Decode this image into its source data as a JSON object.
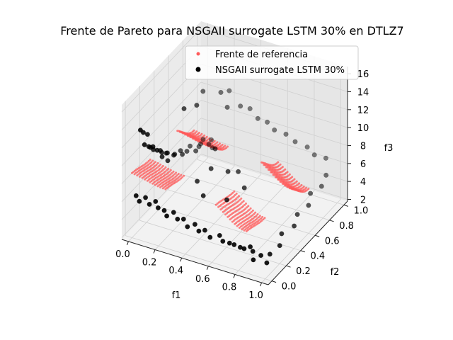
{
  "chart_data": {
    "type": "scatter",
    "projection": "3d",
    "title": "Frente de Pareto para NSGAII surrogate LSTM 30% en DTLZ7",
    "xlabel": "f1",
    "ylabel": "f2",
    "zlabel": "f3",
    "xlim": [
      -0.05,
      1.05
    ],
    "ylim": [
      -0.05,
      1.05
    ],
    "zlim": [
      1.8,
      16.8
    ],
    "x_ticks": [
      0.0,
      0.2,
      0.4,
      0.6,
      0.8,
      1.0
    ],
    "x_tick_labels": [
      "0.0",
      "0.2",
      "0.4",
      "0.6",
      "0.8",
      "1.0"
    ],
    "y_ticks": [
      0.0,
      0.2,
      0.4,
      0.6,
      0.8,
      1.0
    ],
    "y_tick_labels": [
      "0.0",
      "0.2",
      "0.4",
      "0.6",
      "0.8",
      "1.0"
    ],
    "z_ticks": [
      2,
      4,
      6,
      8,
      10,
      12,
      14,
      16
    ],
    "z_tick_labels": [
      "2",
      "4",
      "6",
      "8",
      "10",
      "12",
      "14",
      "16"
    ],
    "grid": true,
    "legend_position": "top-right",
    "series": [
      {
        "name": "Frente de referencia",
        "color": "#ff5a5a",
        "kind": "reference_surface",
        "x_regions": [
          [
            0.0,
            0.252
          ],
          [
            0.631,
            0.86
          ]
        ],
        "y_regions": [
          [
            0.0,
            0.252
          ],
          [
            0.631,
            0.86
          ]
        ],
        "z_formula": "3*(3 - sum_i(fi/2*(1+sin(3*pi*fi))))"
      },
      {
        "name": "NSGAII surrogate LSTM 30%",
        "color": "#000000",
        "points": [
          [
            0.02,
            0.02,
            6.4
          ],
          [
            0.05,
            0.01,
            6.0
          ],
          [
            0.08,
            0.04,
            6.3
          ],
          [
            0.12,
            0.02,
            5.9
          ],
          [
            0.15,
            0.05,
            6.1
          ],
          [
            0.18,
            0.03,
            5.7
          ],
          [
            0.22,
            0.04,
            5.5
          ],
          [
            0.25,
            0.02,
            5.2
          ],
          [
            0.28,
            0.06,
            5.4
          ],
          [
            0.32,
            0.04,
            5.0
          ],
          [
            0.36,
            0.05,
            5.1
          ],
          [
            0.4,
            0.03,
            4.6
          ],
          [
            0.44,
            0.06,
            4.8
          ],
          [
            0.48,
            0.04,
            4.4
          ],
          [
            0.52,
            0.05,
            4.6
          ],
          [
            0.57,
            0.03,
            4.2
          ],
          [
            0.62,
            0.07,
            4.3
          ],
          [
            0.66,
            0.04,
            4.1
          ],
          [
            0.7,
            0.06,
            3.9
          ],
          [
            0.74,
            0.05,
            4.0
          ],
          [
            0.78,
            0.06,
            3.8
          ],
          [
            0.82,
            0.04,
            4.0
          ],
          [
            0.85,
            0.07,
            4.1
          ],
          [
            0.88,
            0.05,
            3.9
          ],
          [
            0.02,
            0.08,
            13.2
          ],
          [
            0.02,
            0.12,
            12.6
          ],
          [
            0.03,
            0.16,
            12.1
          ],
          [
            0.04,
            0.1,
            11.5
          ],
          [
            0.05,
            0.14,
            11.0
          ],
          [
            0.06,
            0.18,
            10.7
          ],
          [
            0.03,
            0.2,
            10.3
          ],
          [
            0.07,
            0.22,
            10.0
          ],
          [
            0.02,
            0.26,
            9.5
          ],
          [
            0.05,
            0.3,
            9.2
          ],
          [
            0.08,
            0.27,
            8.9
          ],
          [
            0.04,
            0.34,
            8.6
          ],
          [
            0.06,
            0.38,
            8.3
          ],
          [
            0.09,
            0.33,
            8.0
          ],
          [
            0.03,
            0.42,
            7.8
          ],
          [
            0.07,
            0.45,
            7.5
          ],
          [
            0.05,
            0.5,
            7.1
          ],
          [
            0.08,
            0.55,
            6.8
          ],
          [
            0.04,
            0.6,
            6.6
          ],
          [
            0.06,
            0.65,
            6.2
          ],
          [
            0.1,
            0.7,
            6.0
          ],
          [
            0.03,
            0.75,
            5.8
          ],
          [
            0.07,
            0.8,
            5.5
          ],
          [
            0.05,
            0.86,
            5.2
          ],
          [
            0.09,
            0.9,
            5.0
          ],
          [
            0.02,
            0.95,
            4.8
          ],
          [
            0.06,
            0.99,
            4.6
          ],
          [
            0.1,
            0.93,
            4.4
          ],
          [
            0.12,
            0.5,
            12.5
          ],
          [
            0.15,
            0.62,
            12.0
          ],
          [
            0.1,
            0.8,
            11.8
          ],
          [
            0.18,
            0.9,
            11.2
          ],
          [
            0.2,
            0.98,
            10.8
          ],
          [
            0.25,
            0.86,
            10.2
          ],
          [
            0.3,
            0.95,
            9.8
          ],
          [
            0.35,
            0.99,
            9.4
          ],
          [
            0.42,
            0.97,
            8.8
          ],
          [
            0.48,
            0.99,
            8.5
          ],
          [
            0.55,
            0.96,
            8.2
          ],
          [
            0.62,
            0.99,
            7.8
          ],
          [
            0.7,
            0.97,
            7.5
          ],
          [
            0.78,
            0.99,
            7.1
          ],
          [
            0.85,
            0.96,
            6.8
          ],
          [
            0.92,
            0.99,
            6.5
          ],
          [
            0.97,
            0.9,
            5.6
          ],
          [
            0.99,
            0.8,
            5.3
          ],
          [
            0.95,
            0.72,
            5.0
          ],
          [
            0.99,
            0.62,
            4.7
          ],
          [
            0.96,
            0.52,
            4.4
          ],
          [
            0.99,
            0.42,
            4.1
          ],
          [
            0.95,
            0.32,
            3.9
          ],
          [
            0.99,
            0.22,
            3.6
          ],
          [
            0.97,
            0.12,
            3.4
          ],
          [
            0.99,
            0.04,
            3.2
          ],
          [
            0.93,
            0.07,
            3.5
          ],
          [
            0.9,
            0.02,
            3.3
          ],
          [
            0.45,
            0.5,
            7.0
          ],
          [
            0.5,
            0.55,
            6.8
          ],
          [
            0.35,
            0.45,
            7.3
          ],
          [
            0.3,
            0.35,
            6.5
          ],
          [
            0.55,
            0.3,
            6.0
          ],
          [
            0.6,
            0.45,
            6.3
          ],
          [
            0.4,
            0.25,
            6.2
          ],
          [
            0.3,
            0.6,
            8.0
          ]
        ]
      }
    ]
  }
}
